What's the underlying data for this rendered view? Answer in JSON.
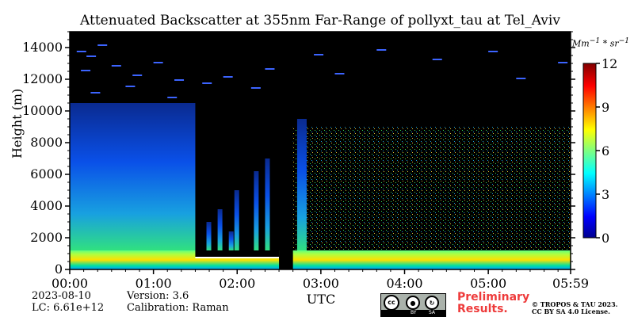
{
  "chart_data": {
    "type": "heatmap",
    "title": "Attenuated Backscatter at 355nm Far-Range of pollyxt_tau at Tel_Aviv",
    "xlabel": "UTC",
    "ylabel": "Height (m)",
    "x_tick_labels": [
      "00:00",
      "01:00",
      "02:00",
      "03:00",
      "04:00",
      "05:00",
      "05:59"
    ],
    "x_ticks_minutes": [
      0,
      60,
      120,
      180,
      240,
      300,
      359
    ],
    "xlim_minutes": [
      0,
      359
    ],
    "y_ticks": [
      0,
      2000,
      4000,
      6000,
      8000,
      10000,
      12000,
      14000
    ],
    "ylim": [
      0,
      15000
    ],
    "colorbar": {
      "unit": "Mm⁻¹ * sr⁻¹",
      "ticks": [
        0,
        3,
        6,
        9,
        12
      ],
      "range": [
        0,
        12
      ],
      "colormap": "jet-like (blue to green to yellow to red)"
    },
    "features": {
      "boundary_layer_top_m": 1200,
      "data_gap_minutes": [
        150,
        160
      ],
      "dense_cloud_region_minutes": [
        0,
        90
      ],
      "low_layer_region_minutes": [
        90,
        150
      ],
      "sparse_high_signal_region_minutes": [
        160,
        359
      ]
    }
  },
  "footer": {
    "date": "2023-08-10",
    "version": "Version: 3.6",
    "lc": "LC: 6.61e+12",
    "calibration": "Calibration: Raman",
    "preliminary_line1": "Preliminary",
    "preliminary_line2": "Results.",
    "copyright_line1": "© TROPOS & TAU 2023.",
    "copyright_line2": "CC BY SA 4.0 License.",
    "license_badge": {
      "by": "BY",
      "sa": "SA",
      "cc": "cc"
    }
  },
  "colors": {
    "background": "#000000",
    "boundary_layer": "#ffe000",
    "cloud_blue": "#0a3ad8"
  }
}
